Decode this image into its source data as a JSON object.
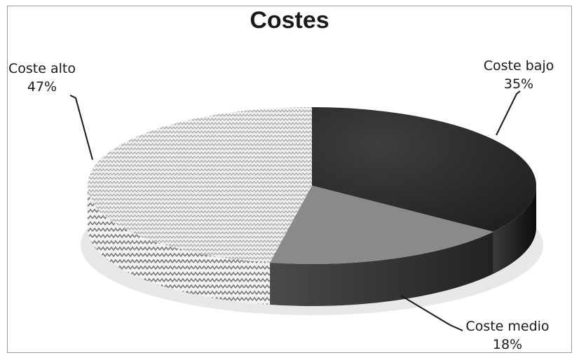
{
  "chart_data": {
    "type": "pie",
    "title": "Costes",
    "three_d": true,
    "slices": [
      {
        "label": "Coste bajo",
        "value": 35,
        "value_text": "35%",
        "color": "#2b2b2b",
        "side_color": "#111111"
      },
      {
        "label": "Coste medio",
        "value": 18,
        "value_text": "18%",
        "color": "#8a8a8a",
        "side_color": "#3a3a3a"
      },
      {
        "label": "Coste alto",
        "value": 47,
        "value_text": "47%",
        "color": "#d6d6d6",
        "side_color": "#c8c8c8",
        "pattern": "zigzag"
      }
    ]
  }
}
